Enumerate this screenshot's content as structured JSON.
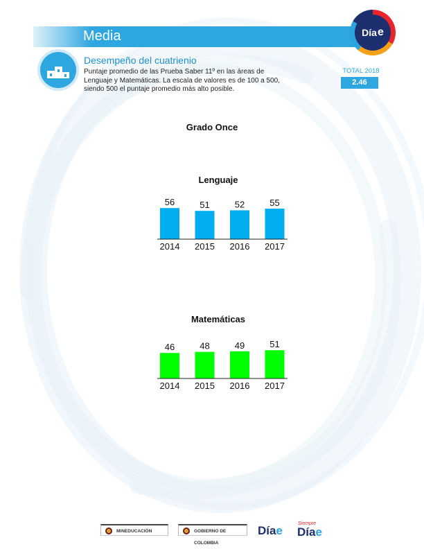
{
  "header": {
    "section_title": "Media",
    "logo_text": "Día",
    "logo_e": "e"
  },
  "intro": {
    "icon": "podium-icon",
    "subtitle": "Desempeño del cuatrienio",
    "description": "Puntaje promedio de las Prueba Saber 11º en las áreas de Lenguaje y Matemáticas. La escala de valores es de 100 a 500, siendo 500 el puntaje promedio más alto posible."
  },
  "total": {
    "label": "TOTAL 2018",
    "value": "2.46"
  },
  "grade_title": "Grado Once",
  "chart_data": [
    {
      "type": "bar",
      "title": "Lenguaje",
      "categories": [
        "2014",
        "2015",
        "2016",
        "2017"
      ],
      "values": [
        56,
        51,
        52,
        55
      ],
      "color": "#00aeef",
      "xlabel": "",
      "ylabel": "",
      "ylim": [
        0,
        60
      ],
      "grid": false
    },
    {
      "type": "bar",
      "title": "Matemáticas",
      "categories": [
        "2014",
        "2015",
        "2016",
        "2017"
      ],
      "values": [
        46,
        48,
        49,
        51
      ],
      "color": "#00ff00",
      "xlabel": "",
      "ylabel": "",
      "ylim": [
        0,
        60
      ],
      "grid": false
    }
  ],
  "footer": {
    "logos": [
      {
        "name": "mineducacion-logo",
        "text": "MINEDUCACIÓN"
      },
      {
        "name": "gobierno-de-colombia-logo",
        "text": "GOBIERNO DE COLOMBIA"
      },
      {
        "name": "dia-e-logo",
        "text": "Día"
      },
      {
        "name": "siempre-dia-e-logo",
        "text": "Día",
        "tagline": "Siempre"
      }
    ],
    "logo_e": "e"
  }
}
